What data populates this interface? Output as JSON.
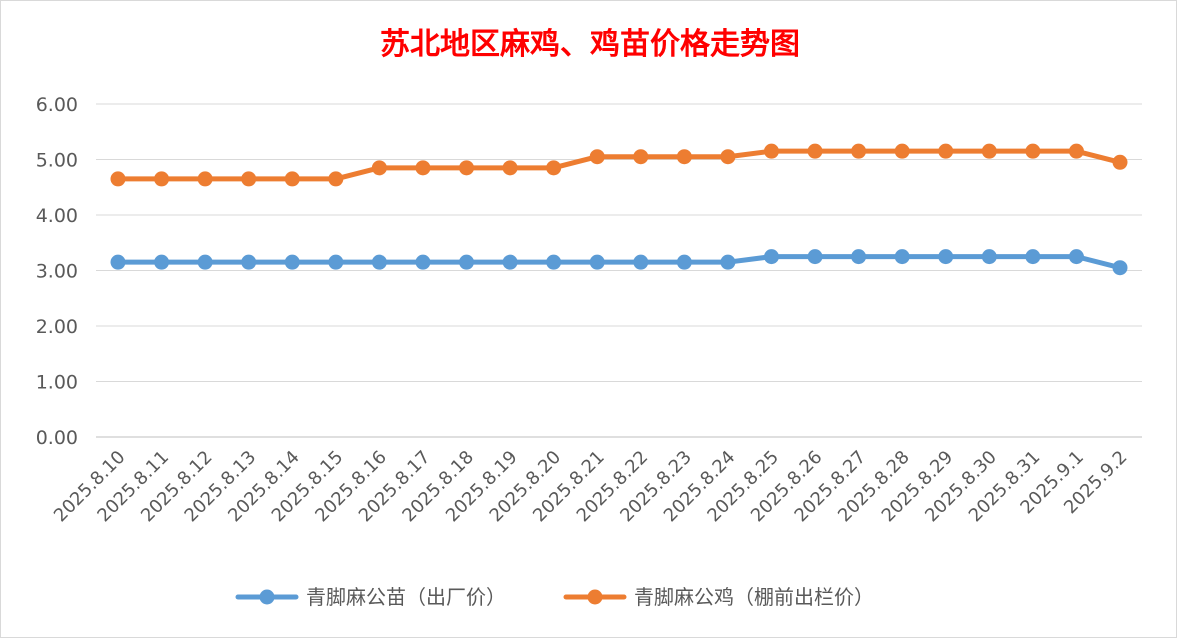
{
  "chart_data": {
    "type": "line",
    "title": "苏北地区麻鸡、鸡苗价格走势图",
    "categories": [
      "2025.8.10",
      "2025.8.11",
      "2025.8.12",
      "2025.8.13",
      "2025.8.14",
      "2025.8.15",
      "2025.8.16",
      "2025.8.17",
      "2025.8.18",
      "2025.8.19",
      "2025.8.20",
      "2025.8.21",
      "2025.8.22",
      "2025.8.23",
      "2025.8.24",
      "2025.8.25",
      "2025.8.26",
      "2025.8.27",
      "2025.8.28",
      "2025.8.29",
      "2025.8.30",
      "2025.8.31",
      "2025.9.1",
      "2025.9.2"
    ],
    "series": [
      {
        "name": "青脚麻公苗（出厂价）",
        "color": "#5B9BD5",
        "values": [
          3.15,
          3.15,
          3.15,
          3.15,
          3.15,
          3.15,
          3.15,
          3.15,
          3.15,
          3.15,
          3.15,
          3.15,
          3.15,
          3.15,
          3.15,
          3.25,
          3.25,
          3.25,
          3.25,
          3.25,
          3.25,
          3.25,
          3.25,
          3.05
        ]
      },
      {
        "name": "青脚麻公鸡（棚前出栏价）",
        "color": "#ED7D31",
        "values": [
          4.65,
          4.65,
          4.65,
          4.65,
          4.65,
          4.65,
          4.85,
          4.85,
          4.85,
          4.85,
          4.85,
          5.05,
          5.05,
          5.05,
          5.05,
          5.15,
          5.15,
          5.15,
          5.15,
          5.15,
          5.15,
          5.15,
          5.15,
          4.95
        ]
      }
    ],
    "ylim": [
      0,
      6
    ],
    "yticks": [
      "0.00",
      "1.00",
      "2.00",
      "3.00",
      "4.00",
      "5.00",
      "6.00"
    ],
    "grid": true,
    "legend": "bottom"
  }
}
